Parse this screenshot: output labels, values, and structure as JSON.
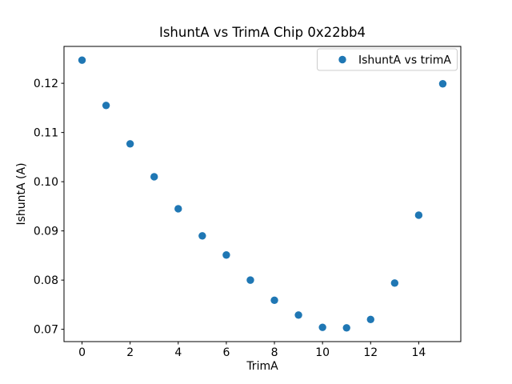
{
  "chart_data": {
    "type": "scatter",
    "title": "IshuntA vs TrimA Chip 0x22bb4",
    "xlabel": "TrimA",
    "ylabel": "IshuntA (A)",
    "legend": {
      "label": "IshuntA vs trimA",
      "position": "upper right"
    },
    "series": [
      {
        "name": "IshuntA vs trimA",
        "x": [
          0,
          1,
          2,
          3,
          4,
          5,
          6,
          7,
          8,
          9,
          10,
          11,
          12,
          13,
          14,
          15
        ],
        "y": [
          0.1247,
          0.1155,
          0.1077,
          0.101,
          0.0945,
          0.089,
          0.0851,
          0.08,
          0.0759,
          0.0729,
          0.0704,
          0.0703,
          0.072,
          0.0794,
          0.0932,
          0.1199
        ]
      }
    ],
    "xlim": [
      -0.75,
      15.75
    ],
    "ylim": [
      0.0675,
      0.1275
    ],
    "xticks": {
      "values": [
        0,
        2,
        4,
        6,
        8,
        10,
        12,
        14
      ],
      "labels": [
        "0",
        "2",
        "4",
        "6",
        "8",
        "10",
        "12",
        "14"
      ]
    },
    "yticks": {
      "values": [
        0.07,
        0.08,
        0.09,
        0.1,
        0.11,
        0.12
      ],
      "labels": [
        "0.07",
        "0.08",
        "0.09",
        "0.10",
        "0.11",
        "0.12"
      ]
    },
    "grid": false,
    "marker_color": "#1f77b4",
    "spine_color": "#000000",
    "legend_border_color": "#cccccc"
  }
}
